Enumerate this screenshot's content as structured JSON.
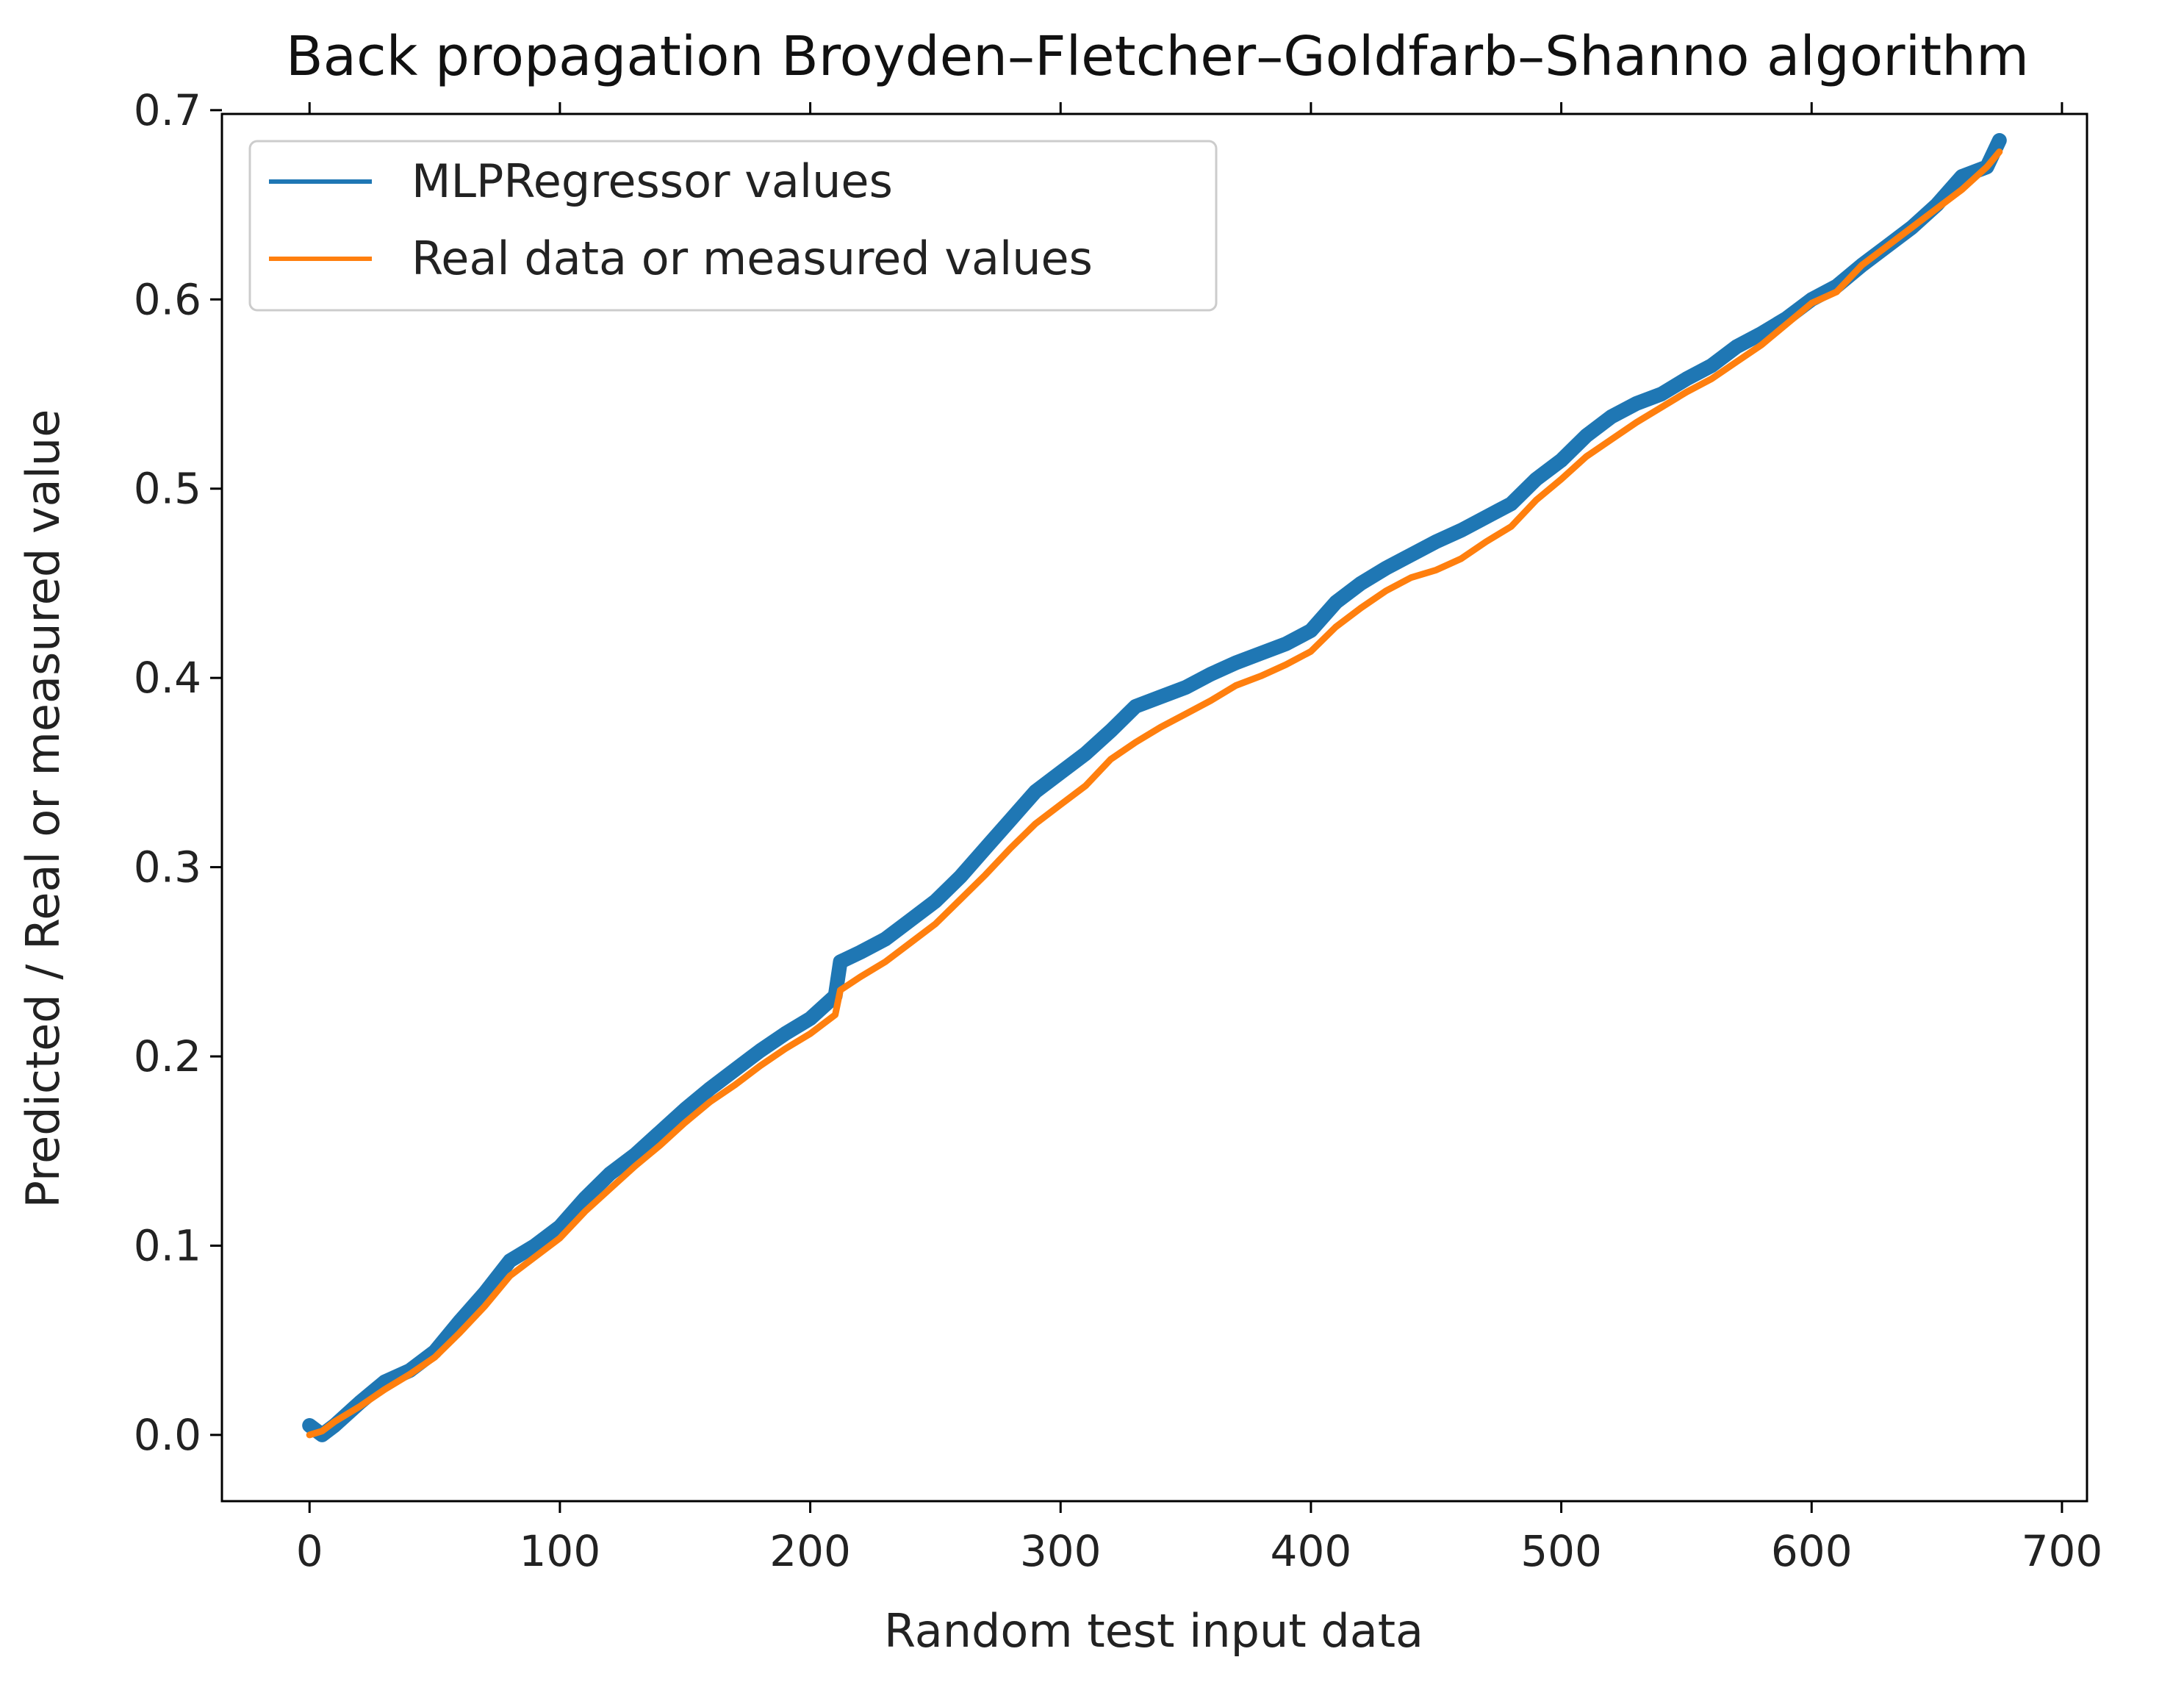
{
  "chart_data": {
    "type": "line",
    "title": "Back propagation  Broyden–Fletcher–Goldfarb–Shanno algorithm",
    "xlabel": "Random test input data",
    "ylabel": "Predicted / Real or measured value",
    "xlim": [
      -35,
      710
    ],
    "ylim": [
      -0.035,
      0.698
    ],
    "xticks": [
      0,
      100,
      200,
      300,
      400,
      500,
      600,
      700
    ],
    "yticks": [
      0.0,
      0.1,
      0.2,
      0.3,
      0.4,
      0.5,
      0.6,
      0.7
    ],
    "xtick_labels": [
      "0",
      "100",
      "200",
      "300",
      "400",
      "500",
      "600",
      "700"
    ],
    "ytick_labels": [
      "0.0",
      "0.1",
      "0.2",
      "0.3",
      "0.4",
      "0.5",
      "0.6",
      "0.7"
    ],
    "grid": false,
    "legend_position": "top-left",
    "series": [
      {
        "name": "MLPRegressor values",
        "color": "#1f77b4",
        "x": [
          0,
          5,
          10,
          20,
          30,
          40,
          50,
          60,
          70,
          80,
          90,
          100,
          110,
          120,
          130,
          140,
          150,
          160,
          170,
          180,
          190,
          200,
          210,
          212,
          220,
          230,
          240,
          250,
          260,
          270,
          280,
          290,
          300,
          310,
          320,
          330,
          340,
          350,
          360,
          370,
          380,
          390,
          400,
          410,
          420,
          430,
          440,
          450,
          460,
          470,
          480,
          490,
          500,
          510,
          520,
          530,
          540,
          550,
          560,
          570,
          580,
          590,
          600,
          610,
          620,
          630,
          640,
          650,
          660,
          670,
          675
        ],
        "y": [
          0.005,
          0.0,
          0.005,
          0.017,
          0.028,
          0.034,
          0.044,
          0.06,
          0.075,
          0.092,
          0.1,
          0.11,
          0.125,
          0.138,
          0.148,
          0.16,
          0.172,
          0.183,
          0.193,
          0.203,
          0.212,
          0.22,
          0.232,
          0.25,
          0.255,
          0.262,
          0.272,
          0.282,
          0.295,
          0.31,
          0.325,
          0.34,
          0.35,
          0.36,
          0.372,
          0.385,
          0.39,
          0.395,
          0.402,
          0.408,
          0.413,
          0.418,
          0.425,
          0.44,
          0.45,
          0.458,
          0.465,
          0.472,
          0.478,
          0.485,
          0.492,
          0.505,
          0.515,
          0.528,
          0.538,
          0.545,
          0.55,
          0.558,
          0.565,
          0.575,
          0.582,
          0.59,
          0.6,
          0.607,
          0.618,
          0.628,
          0.638,
          0.65,
          0.665,
          0.67,
          0.684
        ]
      },
      {
        "name": "Real data or measured values",
        "color": "#ff7f0e",
        "x": [
          0,
          5,
          10,
          20,
          30,
          40,
          50,
          60,
          70,
          80,
          90,
          100,
          110,
          120,
          130,
          140,
          150,
          160,
          170,
          180,
          190,
          200,
          210,
          212,
          220,
          230,
          240,
          250,
          260,
          270,
          280,
          290,
          300,
          310,
          320,
          330,
          340,
          350,
          360,
          370,
          380,
          390,
          400,
          410,
          420,
          430,
          440,
          450,
          460,
          470,
          480,
          490,
          500,
          510,
          520,
          530,
          540,
          550,
          560,
          570,
          580,
          590,
          600,
          610,
          620,
          630,
          640,
          650,
          660,
          670,
          675
        ],
        "y": [
          0.0,
          0.002,
          0.007,
          0.015,
          0.024,
          0.032,
          0.041,
          0.054,
          0.068,
          0.084,
          0.094,
          0.104,
          0.118,
          0.13,
          0.142,
          0.153,
          0.165,
          0.176,
          0.185,
          0.195,
          0.204,
          0.212,
          0.222,
          0.235,
          0.242,
          0.25,
          0.26,
          0.27,
          0.283,
          0.296,
          0.31,
          0.323,
          0.333,
          0.343,
          0.357,
          0.366,
          0.374,
          0.381,
          0.388,
          0.396,
          0.401,
          0.407,
          0.414,
          0.427,
          0.437,
          0.446,
          0.453,
          0.457,
          0.463,
          0.472,
          0.48,
          0.494,
          0.505,
          0.517,
          0.526,
          0.535,
          0.543,
          0.551,
          0.558,
          0.567,
          0.576,
          0.587,
          0.598,
          0.604,
          0.618,
          0.628,
          0.638,
          0.648,
          0.658,
          0.67,
          0.678
        ]
      }
    ]
  }
}
